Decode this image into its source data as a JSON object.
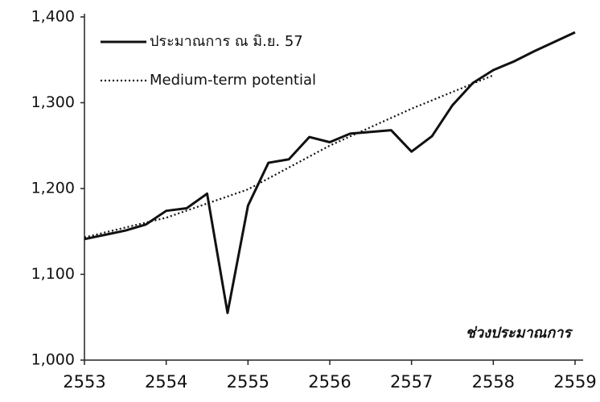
{
  "chart_data": {
    "type": "line",
    "annotation": "ช่วงประมาณการ",
    "xlim": [
      2553,
      2559
    ],
    "xticks": [
      2553,
      2554,
      2555,
      2556,
      2557,
      2558,
      2559
    ],
    "ylim": [
      1000,
      1400
    ],
    "yticks": [
      {
        "value": 1000,
        "label": "1,000"
      },
      {
        "value": 1100,
        "label": "1,100"
      },
      {
        "value": 1200,
        "label": "1,200"
      },
      {
        "value": 1300,
        "label": "1,300"
      },
      {
        "value": 1400,
        "label": "1,400"
      }
    ],
    "series": [
      {
        "name": "ประมาณการ ณ มิ.ย. 57",
        "color": "#111111",
        "style": "solid",
        "x": [
          2553,
          2553.25,
          2553.5,
          2553.75,
          2554,
          2554.25,
          2554.5,
          2554.75,
          2555,
          2555.25,
          2555.5,
          2555.75,
          2556,
          2556.25,
          2556.5,
          2556.75,
          2557,
          2557.25,
          2557.5,
          2557.75,
          2558,
          2558.25,
          2558.5,
          2558.75,
          2559
        ],
        "values": [
          1141,
          1146,
          1151,
          1158,
          1174,
          1177,
          1194,
          1055,
          1180,
          1230,
          1234,
          1260,
          1254,
          1264,
          1266,
          1268,
          1243,
          1261,
          1297,
          1323,
          1338,
          1348,
          1360,
          1371,
          1382
        ]
      },
      {
        "name": "Medium-term potential",
        "color": "#111111",
        "style": "dotted",
        "x": [
          2553,
          2554,
          2555,
          2556,
          2557,
          2558
        ],
        "values": [
          1143,
          1166,
          1199,
          1250,
          1293,
          1332
        ]
      }
    ]
  }
}
